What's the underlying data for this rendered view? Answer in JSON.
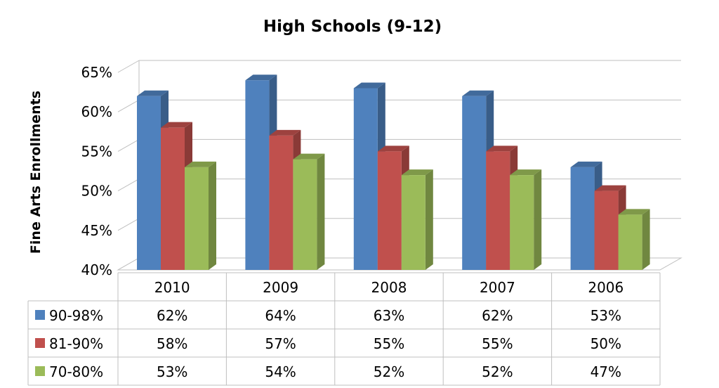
{
  "chart_data": {
    "type": "bar",
    "title": "High Schools (9-12)",
    "xlabel": "",
    "ylabel": "Fine Arts Enrollments",
    "ylim": [
      40,
      65
    ],
    "yticks": [
      "40%",
      "45%",
      "50%",
      "55%",
      "60%",
      "65%"
    ],
    "categories": [
      "2010",
      "2009",
      "2008",
      "2007",
      "2006"
    ],
    "grid": true,
    "legend": "data-table",
    "series": [
      {
        "name": "90-98%",
        "color": "#4F81BD",
        "values": [
          62,
          64,
          63,
          62,
          53
        ],
        "labels": [
          "62%",
          "64%",
          "63%",
          "62%",
          "53%"
        ]
      },
      {
        "name": "81-90%",
        "color": "#C0504D",
        "values": [
          58,
          57,
          55,
          55,
          50
        ],
        "labels": [
          "58%",
          "57%",
          "55%",
          "55%",
          "50%"
        ]
      },
      {
        "name": "70-80%",
        "color": "#9BBB59",
        "values": [
          53,
          54,
          52,
          52,
          47
        ],
        "labels": [
          "53%",
          "54%",
          "52%",
          "52%",
          "47%"
        ]
      }
    ]
  }
}
